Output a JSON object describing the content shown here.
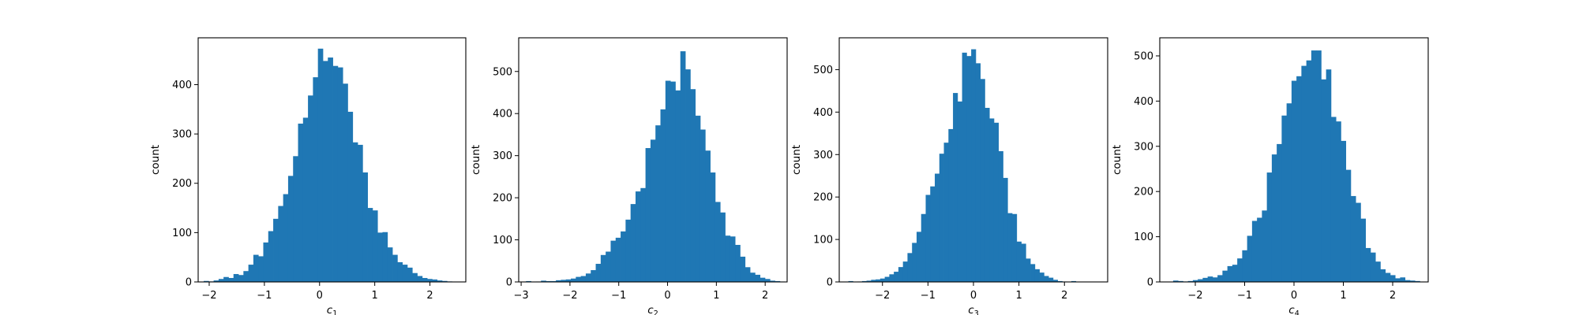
{
  "figure": {
    "background": "#ffffff",
    "bar_color": "#1f77b4"
  },
  "chart_data": [
    {
      "type": "bar",
      "xlabel": "c",
      "xlabel_subscript": "1",
      "ylabel": "count",
      "xlim": [
        -2.2,
        2.65
      ],
      "ylim": [
        0,
        495
      ],
      "xticks": [
        -2,
        -1,
        0,
        1,
        2
      ],
      "xtick_labels": [
        "−2",
        "−1",
        "0",
        "1",
        "2"
      ],
      "yticks": [
        0,
        100,
        200,
        300,
        400
      ],
      "ytick_labels": [
        "0",
        "100",
        "200",
        "300",
        "400"
      ],
      "bin_start": -2.1,
      "bin_width": 0.09,
      "values": [
        2,
        1,
        3,
        6,
        10,
        8,
        16,
        14,
        22,
        35,
        55,
        52,
        80,
        103,
        128,
        154,
        178,
        215,
        255,
        321,
        333,
        378,
        415,
        473,
        448,
        455,
        438,
        435,
        402,
        345,
        283,
        278,
        222,
        150,
        145,
        100,
        101,
        70,
        55,
        40,
        35,
        29,
        18,
        12,
        8,
        6,
        5,
        3,
        2,
        1
      ]
    },
    {
      "type": "bar",
      "xlabel": "c",
      "xlabel_subscript": "2",
      "ylabel": "count",
      "xlim": [
        -3.05,
        2.45
      ],
      "ylim": [
        0,
        580
      ],
      "xticks": [
        -3,
        -2,
        -1,
        0,
        1,
        2
      ],
      "xtick_labels": [
        "−3",
        "−2",
        "−1",
        "0",
        "1",
        "2"
      ],
      "yticks": [
        0,
        100,
        200,
        300,
        400,
        500
      ],
      "ytick_labels": [
        "0",
        "100",
        "200",
        "300",
        "400",
        "500"
      ],
      "bin_start": -2.9,
      "bin_width": 0.102,
      "values": [
        2,
        0,
        1,
        3,
        2,
        2,
        4,
        5,
        6,
        8,
        12,
        14,
        20,
        28,
        43,
        64,
        72,
        98,
        105,
        120,
        148,
        185,
        215,
        223,
        318,
        338,
        372,
        410,
        478,
        476,
        455,
        548,
        505,
        458,
        395,
        362,
        312,
        260,
        190,
        165,
        110,
        108,
        88,
        60,
        35,
        22,
        17,
        10,
        7,
        3,
        2,
        1
      ]
    },
    {
      "type": "bar",
      "xlabel": "c",
      "xlabel_subscript": "3",
      "ylabel": "count",
      "xlim": [
        -2.95,
        2.95
      ],
      "ylim": [
        0,
        575
      ],
      "xticks": [
        -2,
        -1,
        0,
        1,
        2
      ],
      "xtick_labels": [
        "−2",
        "−1",
        "0",
        "1",
        "2"
      ],
      "yticks": [
        0,
        100,
        200,
        300,
        400,
        500
      ],
      "ytick_labels": [
        "0",
        "100",
        "200",
        "300",
        "400",
        "500"
      ],
      "bin_start": -2.75,
      "bin_width": 0.1,
      "values": [
        2,
        0,
        1,
        2,
        3,
        5,
        6,
        8,
        12,
        18,
        24,
        35,
        48,
        68,
        92,
        118,
        160,
        205,
        225,
        255,
        302,
        328,
        360,
        445,
        425,
        540,
        532,
        548,
        515,
        478,
        410,
        385,
        375,
        308,
        245,
        162,
        160,
        95,
        90,
        55,
        42,
        30,
        22,
        14,
        10,
        5,
        2,
        1,
        0,
        2
      ]
    },
    {
      "type": "bar",
      "xlabel": "c",
      "xlabel_subscript": "4",
      "ylabel": "count",
      "xlim": [
        -2.72,
        2.72
      ],
      "ylim": [
        0,
        540
      ],
      "xticks": [
        -2,
        -1,
        0,
        1,
        2
      ],
      "xtick_labels": [
        "−2",
        "−1",
        "0",
        "1",
        "2"
      ],
      "yticks": [
        0,
        100,
        200,
        300,
        400,
        500
      ],
      "ytick_labels": [
        "0",
        "100",
        "200",
        "300",
        "400",
        "500"
      ],
      "bin_start": -2.45,
      "bin_width": 0.1,
      "values": [
        3,
        2,
        1,
        2,
        4,
        6,
        9,
        12,
        10,
        15,
        25,
        35,
        38,
        52,
        70,
        102,
        135,
        142,
        158,
        242,
        282,
        305,
        368,
        395,
        445,
        455,
        478,
        490,
        512,
        512,
        448,
        470,
        365,
        355,
        312,
        248,
        190,
        175,
        140,
        75,
        65,
        45,
        28,
        20,
        15,
        8,
        10,
        4,
        3,
        2
      ]
    }
  ]
}
